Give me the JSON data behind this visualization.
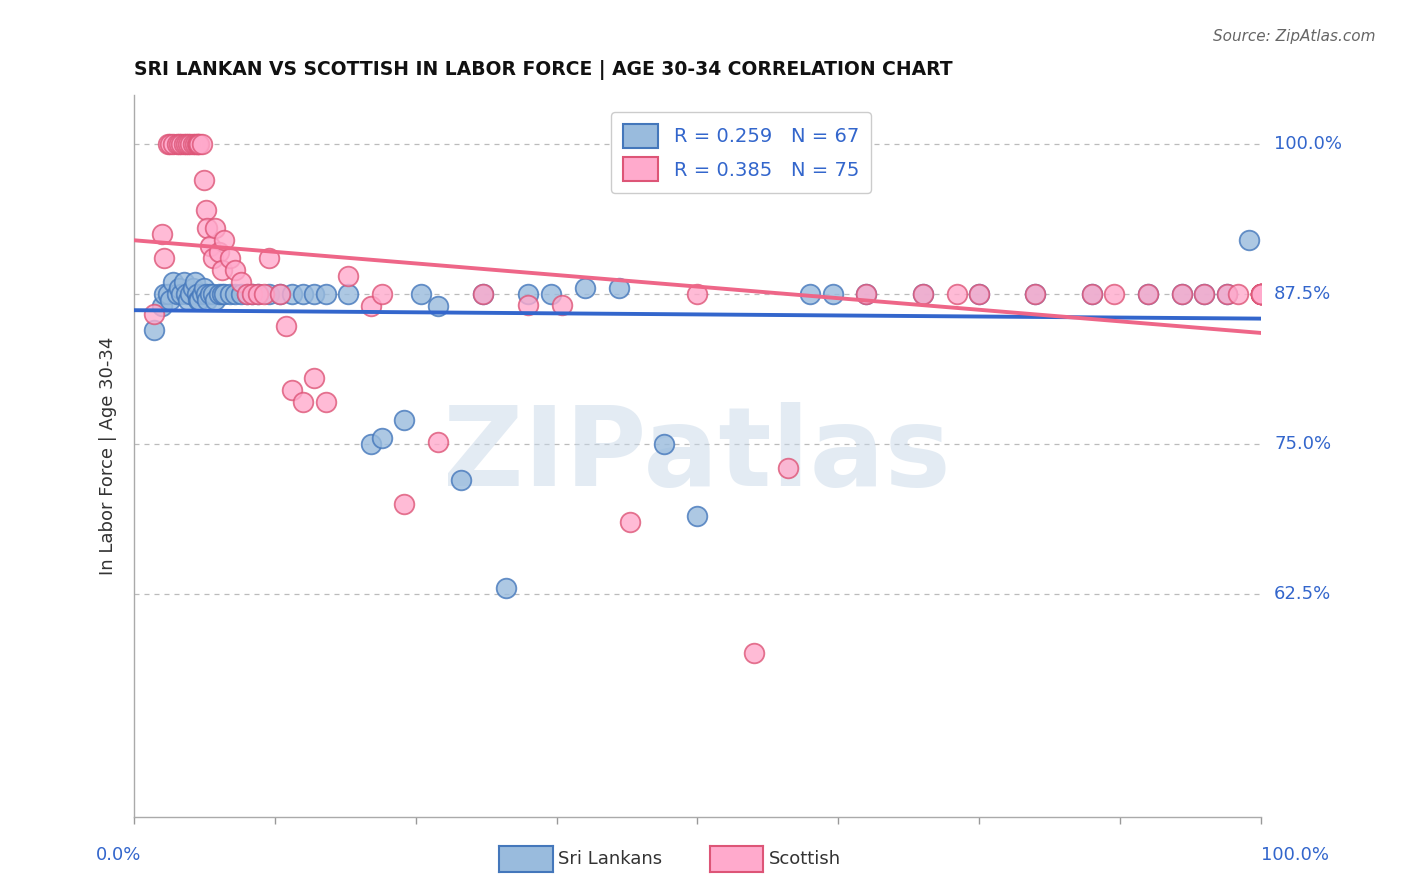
{
  "title": "SRI LANKAN VS SCOTTISH IN LABOR FORCE | AGE 30-34 CORRELATION CHART",
  "source": "Source: ZipAtlas.com",
  "ylabel": "In Labor Force | Age 30-34",
  "ytick_labels": [
    "100.0%",
    "87.5%",
    "75.0%",
    "62.5%"
  ],
  "ytick_vals": [
    1.0,
    0.875,
    0.75,
    0.625
  ],
  "xlim": [
    0.0,
    1.0
  ],
  "ylim": [
    0.44,
    1.04
  ],
  "R_sri": 0.259,
  "N_sri": 67,
  "R_scot": 0.385,
  "N_scot": 75,
  "sri_face": "#99BBDD",
  "sri_edge": "#4477BB",
  "scot_face": "#FFAACC",
  "scot_edge": "#DD5577",
  "sri_line": "#3366CC",
  "scot_line": "#EE6688",
  "grid_color": "#BBBBBB",
  "title_color": "#111111",
  "label_color": "#3366CC",
  "source_color": "#666666",
  "sri_x": [
    0.018,
    0.025,
    0.027,
    0.03,
    0.032,
    0.035,
    0.038,
    0.04,
    0.042,
    0.044,
    0.046,
    0.048,
    0.05,
    0.052,
    0.054,
    0.056,
    0.057,
    0.058,
    0.06,
    0.062,
    0.064,
    0.065,
    0.067,
    0.07,
    0.072,
    0.075,
    0.078,
    0.08,
    0.085,
    0.09,
    0.095,
    0.1,
    0.105,
    0.11,
    0.12,
    0.13,
    0.14,
    0.15,
    0.16,
    0.17,
    0.19,
    0.21,
    0.22,
    0.24,
    0.255,
    0.27,
    0.29,
    0.31,
    0.33,
    0.35,
    0.37,
    0.4,
    0.43,
    0.47,
    0.5,
    0.6,
    0.62,
    0.65,
    0.7,
    0.75,
    0.8,
    0.85,
    0.9,
    0.93,
    0.95,
    0.97,
    0.99
  ],
  "sri_y": [
    0.845,
    0.865,
    0.875,
    0.875,
    0.87,
    0.885,
    0.875,
    0.88,
    0.875,
    0.885,
    0.875,
    0.87,
    0.875,
    0.88,
    0.885,
    0.875,
    0.87,
    0.87,
    0.875,
    0.88,
    0.875,
    0.87,
    0.875,
    0.875,
    0.87,
    0.875,
    0.875,
    0.875,
    0.875,
    0.875,
    0.875,
    0.875,
    0.875,
    0.875,
    0.875,
    0.875,
    0.875,
    0.875,
    0.875,
    0.875,
    0.875,
    0.75,
    0.755,
    0.77,
    0.875,
    0.865,
    0.72,
    0.875,
    0.63,
    0.875,
    0.875,
    0.88,
    0.88,
    0.75,
    0.69,
    0.875,
    0.875,
    0.875,
    0.875,
    0.875,
    0.875,
    0.875,
    0.875,
    0.875,
    0.875,
    0.875,
    0.92
  ],
  "scot_x": [
    0.018,
    0.025,
    0.027,
    0.03,
    0.032,
    0.035,
    0.038,
    0.04,
    0.042,
    0.044,
    0.046,
    0.048,
    0.05,
    0.052,
    0.054,
    0.056,
    0.057,
    0.058,
    0.06,
    0.062,
    0.064,
    0.065,
    0.067,
    0.07,
    0.072,
    0.075,
    0.078,
    0.08,
    0.085,
    0.09,
    0.095,
    0.1,
    0.105,
    0.11,
    0.115,
    0.12,
    0.13,
    0.135,
    0.14,
    0.15,
    0.16,
    0.17,
    0.19,
    0.21,
    0.22,
    0.24,
    0.27,
    0.31,
    0.35,
    0.38,
    0.44,
    0.5,
    0.55,
    0.58,
    0.65,
    0.7,
    0.73,
    0.75,
    0.8,
    0.85,
    0.87,
    0.9,
    0.93,
    0.95,
    0.97,
    0.98,
    1.0,
    1.0,
    1.0,
    1.0,
    1.0,
    1.0,
    1.0,
    1.0,
    1.0
  ],
  "scot_y": [
    0.858,
    0.925,
    0.905,
    1.0,
    1.0,
    1.0,
    1.0,
    1.0,
    1.0,
    1.0,
    1.0,
    1.0,
    1.0,
    1.0,
    1.0,
    1.0,
    1.0,
    1.0,
    1.0,
    0.97,
    0.945,
    0.93,
    0.915,
    0.905,
    0.93,
    0.91,
    0.895,
    0.92,
    0.905,
    0.895,
    0.885,
    0.875,
    0.875,
    0.875,
    0.875,
    0.905,
    0.875,
    0.848,
    0.795,
    0.785,
    0.805,
    0.785,
    0.89,
    0.865,
    0.875,
    0.7,
    0.752,
    0.875,
    0.866,
    0.866,
    0.685,
    0.875,
    0.576,
    0.73,
    0.875,
    0.875,
    0.875,
    0.875,
    0.875,
    0.875,
    0.875,
    0.875,
    0.875,
    0.875,
    0.875,
    0.875,
    0.875,
    0.875,
    0.875,
    0.875,
    0.875,
    0.875,
    0.875,
    0.875,
    0.875
  ]
}
